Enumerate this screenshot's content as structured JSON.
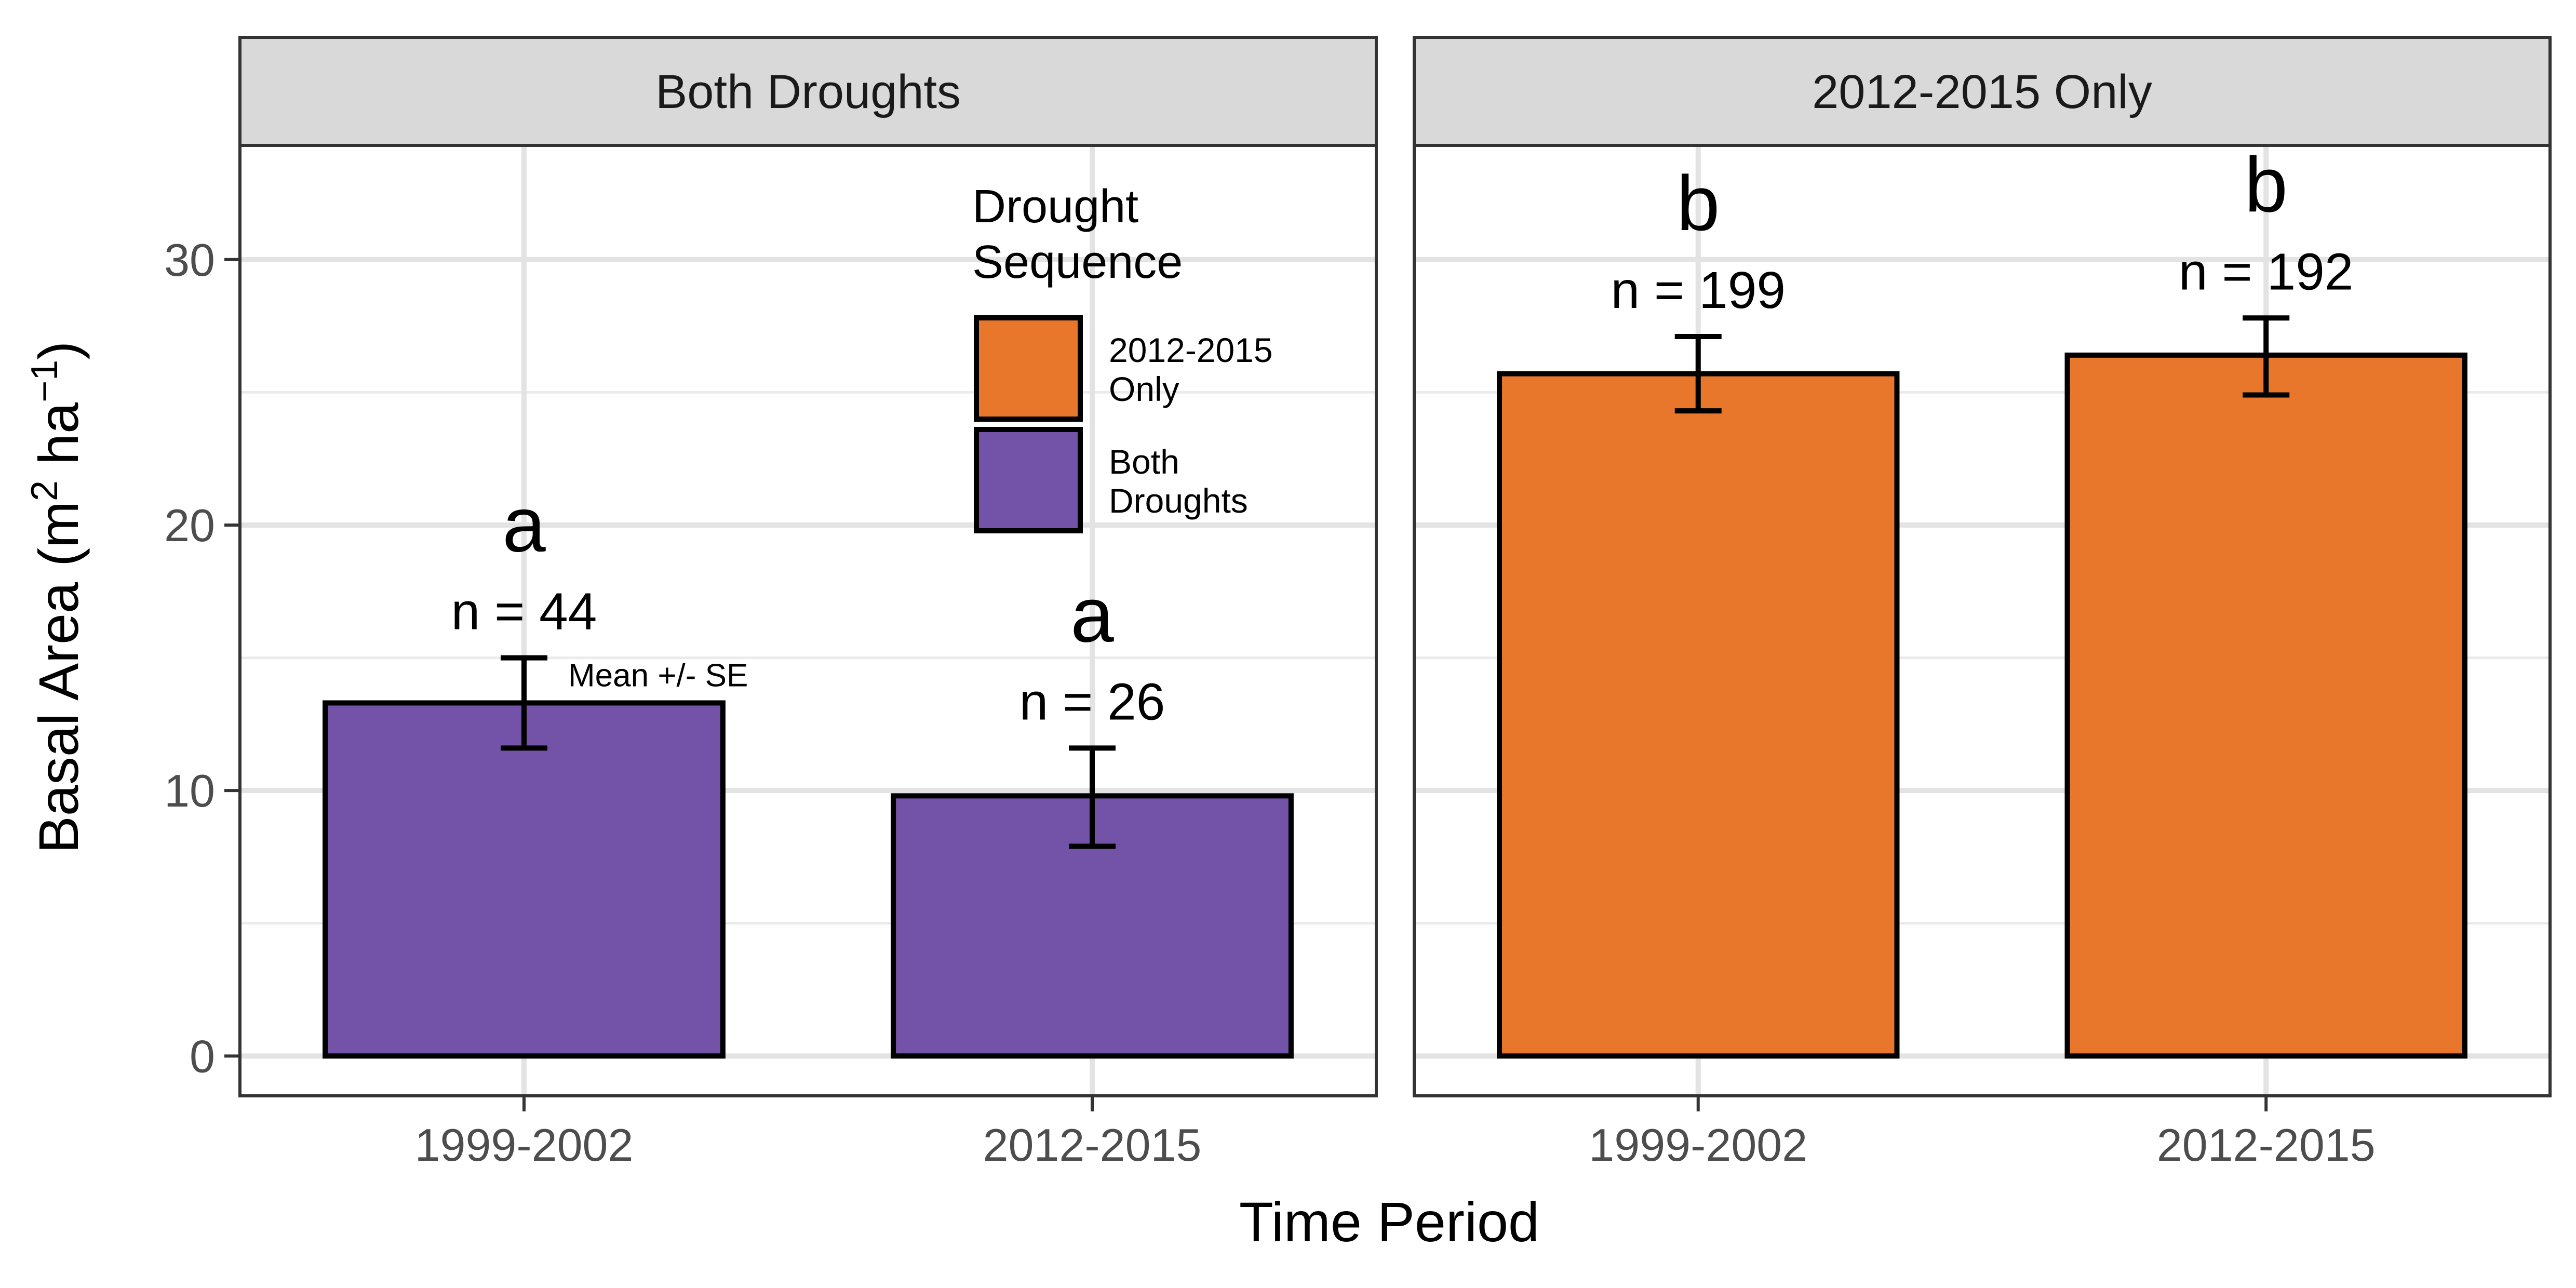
{
  "chart_data": {
    "type": "bar",
    "ylabel": "Basal Area (m",
    "ylabel_sup1": "2",
    "ylabel_mid": " ha",
    "ylabel_sup2": "−1",
    "ylabel_end": ")",
    "xlabel": "Time Period",
    "ylim": [
      -1.5,
      34.3
    ],
    "yticks": [
      0,
      10,
      20,
      30
    ],
    "grid": true,
    "facets": [
      {
        "title": "Both Droughts",
        "categories": [
          "1999-2002",
          "2012-2015"
        ],
        "bars": [
          {
            "category": "1999-2002",
            "value": 13.3,
            "se_low": 11.6,
            "se_high": 15.0,
            "n_label": "n = 44",
            "letter": "a",
            "sequence": "Both Droughts"
          },
          {
            "category": "2012-2015",
            "value": 9.8,
            "se_low": 7.9,
            "se_high": 11.6,
            "n_label": "n = 26",
            "letter": "a",
            "sequence": "Both Droughts"
          }
        ],
        "annotation": "Mean +/- SE"
      },
      {
        "title": "2012-2015 Only",
        "categories": [
          "1999-2002",
          "2012-2015"
        ],
        "bars": [
          {
            "category": "1999-2002",
            "value": 25.7,
            "se_low": 24.3,
            "se_high": 27.1,
            "n_label": "n = 199",
            "letter": "b",
            "sequence": "2012-2015 Only"
          },
          {
            "category": "2012-2015",
            "value": 26.4,
            "se_low": 24.9,
            "se_high": 27.8,
            "n_label": "n = 192",
            "letter": "b",
            "sequence": "2012-2015 Only"
          }
        ]
      }
    ],
    "legend": {
      "title_line1": "Drought",
      "title_line2": "Sequence",
      "placement": "top-right of first panel",
      "items": [
        {
          "line1": "2012-2015",
          "line2": "Only",
          "color": "#E8762B"
        },
        {
          "line1": "Both",
          "line2": "Droughts",
          "color": "#7353A8"
        }
      ]
    },
    "colors": {
      "Both Droughts": "#7353A8",
      "2012-2015 Only": "#E8762B"
    }
  }
}
